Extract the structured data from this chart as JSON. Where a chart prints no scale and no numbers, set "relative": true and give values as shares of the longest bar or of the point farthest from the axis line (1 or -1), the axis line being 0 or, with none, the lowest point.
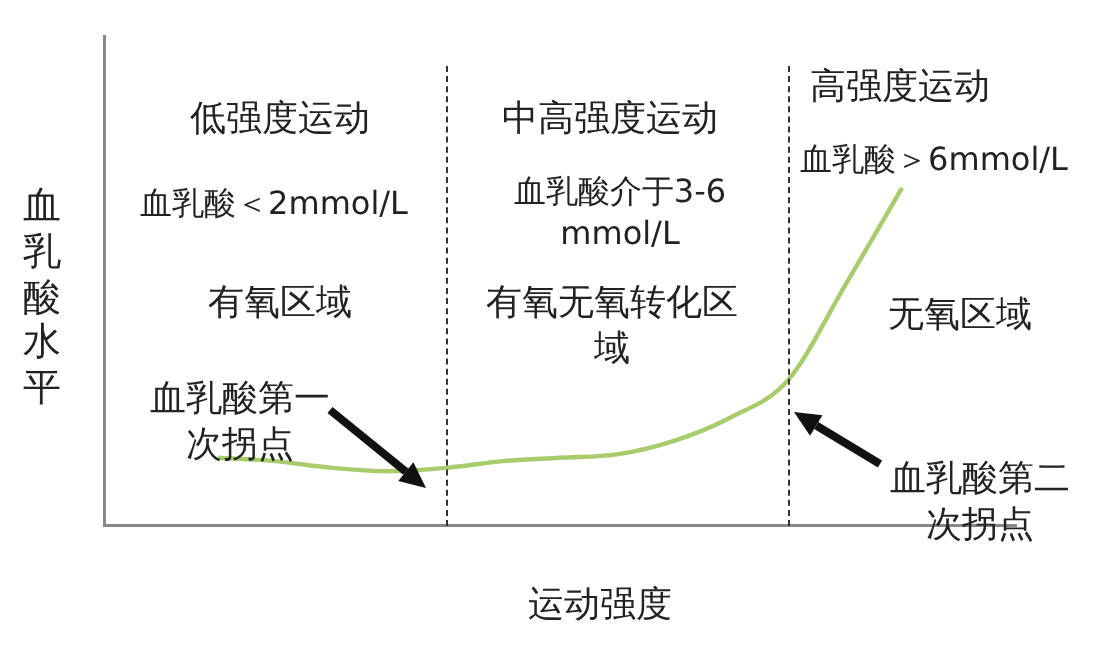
{
  "chart_data": {
    "type": "line",
    "relative": true,
    "xlabel": "运动强度",
    "ylabel": "血乳酸水平",
    "categories": [
      null,
      null,
      null,
      null,
      null,
      null,
      null,
      null,
      null,
      null,
      null,
      null,
      null,
      null,
      null,
      null,
      null
    ],
    "series": [
      {
        "color": "#a8cc6c",
        "values": [
          null,
          null,
          0.2,
          0.19,
          0.17,
          0.16,
          0.17,
          0.19,
          0.2,
          0.21,
          0.25,
          0.32,
          0.43,
          0.71,
          1,
          null,
          null
        ]
      }
    ],
    "annotations": [
      "低强度运动",
      "血乳酸＜2mmol/L",
      "有氧区域",
      "血乳酸第一次拐点",
      "中高强度运动",
      "血乳酸介于3-6 mmol/L",
      "有氧无氧转化区域",
      "高强度运动",
      "血乳酸＞6mmol/L",
      "无氧区域",
      "血乳酸第二次拐点"
    ],
    "marker": "none",
    "grid": false,
    "legend": false
  }
}
